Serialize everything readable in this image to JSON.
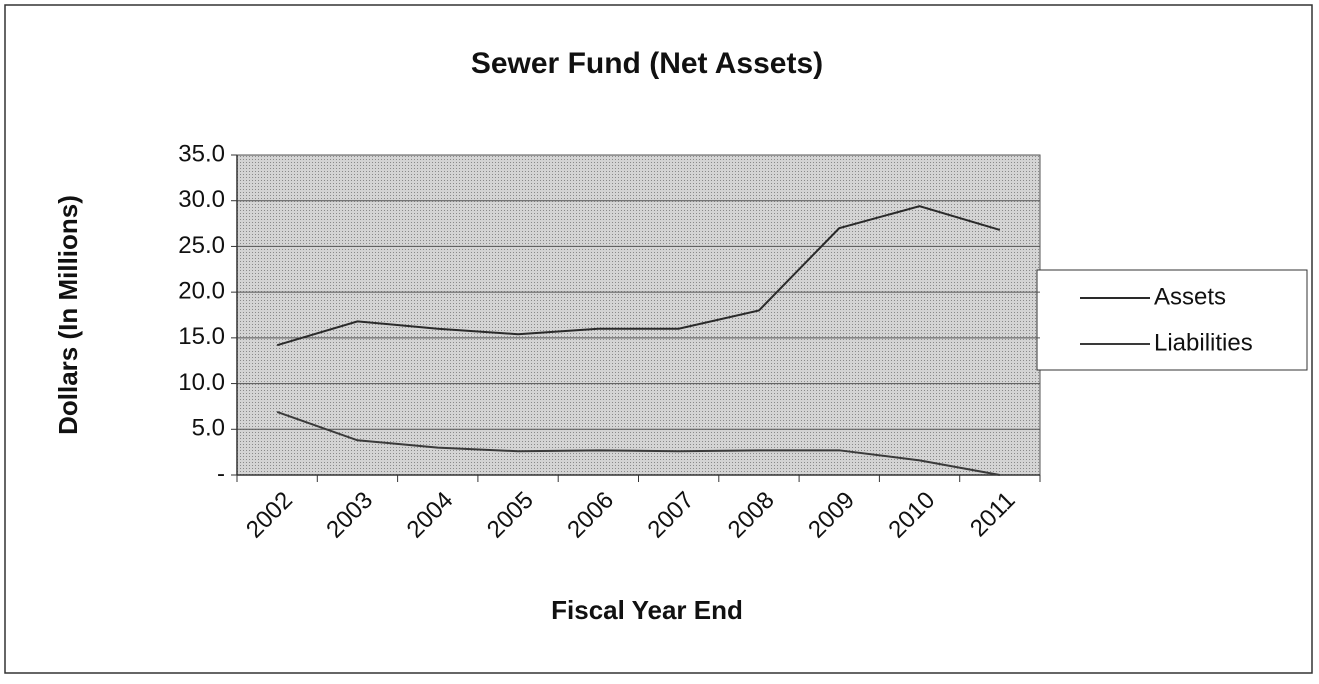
{
  "chart_data": {
    "type": "line",
    "title": "Sewer Fund (Net Assets)",
    "x_label": "Fiscal Year End",
    "y_label": "Dollars (In Millions)",
    "categories": [
      "2002",
      "2003",
      "2004",
      "2005",
      "2006",
      "2007",
      "2008",
      "2009",
      "2010",
      "2011"
    ],
    "series": [
      {
        "name": "Assets",
        "color": "#2a2a2a",
        "values": [
          14.2,
          16.8,
          16.0,
          15.4,
          16.0,
          16.0,
          18.0,
          27.0,
          29.4,
          26.8
        ]
      },
      {
        "name": "Liabilities",
        "color": "#3a3a3a",
        "values": [
          6.9,
          3.8,
          3.0,
          2.6,
          2.7,
          2.6,
          2.7,
          2.7,
          1.6,
          0
        ]
      }
    ],
    "ylim": [
      0,
      35
    ],
    "yticks": [
      {
        "value": 0,
        "label": "-"
      },
      {
        "value": 5,
        "label": "5.0"
      },
      {
        "value": 10,
        "label": "10.0"
      },
      {
        "value": 15,
        "label": "15.0"
      },
      {
        "value": 20,
        "label": "20.0"
      },
      {
        "value": 25,
        "label": "25.0"
      },
      {
        "value": 30,
        "label": "30.0"
      },
      {
        "value": 35,
        "label": "35.0"
      }
    ],
    "grid": true,
    "legend": "right"
  }
}
